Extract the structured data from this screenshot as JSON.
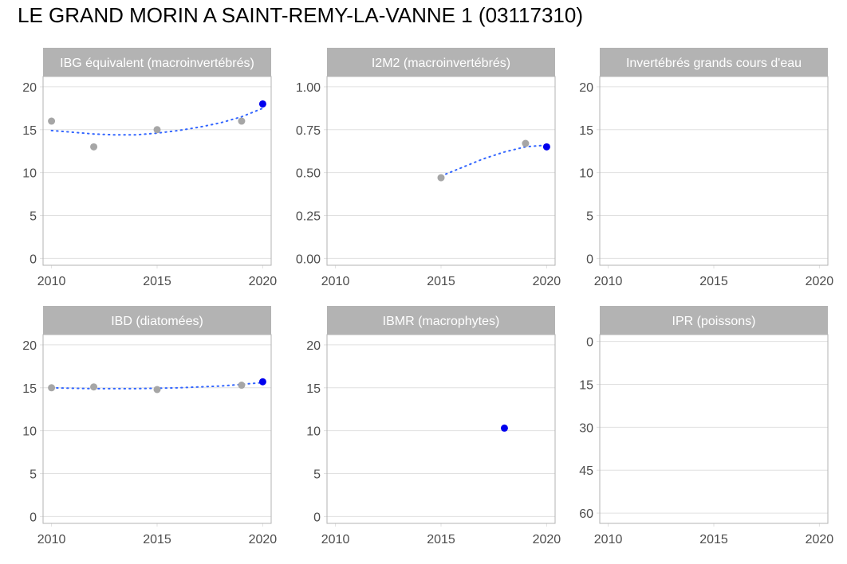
{
  "title": "LE GRAND MORIN A SAINT-REMY-LA-VANNE 1 (03117310)",
  "colors": {
    "strip": "#b3b3b3",
    "grid": "#e0e0e0",
    "border": "#b3b3b3",
    "past_point": "#a6a6a6",
    "latest_point": "#0000ee",
    "trend": "#3366ff",
    "tick_text": "#4d4d4d"
  },
  "chart_data": [
    {
      "type": "scatter",
      "title": "IBG équivalent (macroinvertébrés)",
      "x_ticks": [
        2010,
        2015,
        2020
      ],
      "xlim": [
        2009.6,
        2020.4
      ],
      "y_ticks": [
        0,
        5,
        10,
        15,
        20
      ],
      "y_tick_labels": [
        "0",
        "5",
        "10",
        "15",
        "20"
      ],
      "ylim": [
        -0.8,
        21.2
      ],
      "y_reversed": false,
      "points": [
        {
          "x": 2010,
          "y": 16,
          "latest": false
        },
        {
          "x": 2012,
          "y": 13,
          "latest": false
        },
        {
          "x": 2015,
          "y": 15,
          "latest": false
        },
        {
          "x": 2019,
          "y": 16,
          "latest": false
        },
        {
          "x": 2020,
          "y": 18,
          "latest": true
        }
      ],
      "trend": {
        "x": [
          2010,
          2011,
          2012,
          2013,
          2014,
          2015,
          2016,
          2017,
          2018,
          2019,
          2020
        ],
        "y": [
          14.9,
          14.7,
          14.5,
          14.4,
          14.4,
          14.6,
          14.9,
          15.3,
          15.8,
          16.5,
          17.5
        ]
      }
    },
    {
      "type": "scatter",
      "title": "I2M2 (macroinvertébrés)",
      "x_ticks": [
        2010,
        2015,
        2020
      ],
      "xlim": [
        2009.6,
        2020.4
      ],
      "y_ticks": [
        0,
        0.25,
        0.5,
        0.75,
        1
      ],
      "y_tick_labels": [
        "0.00",
        "0.25",
        "0.50",
        "0.75",
        "1.00"
      ],
      "ylim": [
        -0.04,
        1.06
      ],
      "y_reversed": false,
      "points": [
        {
          "x": 2015,
          "y": 0.47,
          "latest": false
        },
        {
          "x": 2019,
          "y": 0.67,
          "latest": false
        },
        {
          "x": 2020,
          "y": 0.65,
          "latest": true
        }
      ],
      "trend": {
        "x": [
          2015,
          2016,
          2017,
          2018,
          2019,
          2020
        ],
        "y": [
          0.48,
          0.53,
          0.58,
          0.62,
          0.65,
          0.66
        ]
      }
    },
    {
      "type": "scatter",
      "title": "Invertébrés grands cours d'eau",
      "x_ticks": [
        2010,
        2015,
        2020
      ],
      "xlim": [
        2009.6,
        2020.4
      ],
      "y_ticks": [
        0,
        5,
        10,
        15,
        20
      ],
      "y_tick_labels": [
        "0",
        "5",
        "10",
        "15",
        "20"
      ],
      "ylim": [
        -0.8,
        21.2
      ],
      "y_reversed": false,
      "points": [],
      "trend": null
    },
    {
      "type": "scatter",
      "title": "IBD (diatomées)",
      "x_ticks": [
        2010,
        2015,
        2020
      ],
      "xlim": [
        2009.6,
        2020.4
      ],
      "y_ticks": [
        0,
        5,
        10,
        15,
        20
      ],
      "y_tick_labels": [
        "0",
        "5",
        "10",
        "15",
        "20"
      ],
      "ylim": [
        -0.8,
        21.2
      ],
      "y_reversed": false,
      "points": [
        {
          "x": 2010,
          "y": 15.0,
          "latest": false
        },
        {
          "x": 2012,
          "y": 15.1,
          "latest": false
        },
        {
          "x": 2015,
          "y": 14.8,
          "latest": false
        },
        {
          "x": 2019,
          "y": 15.3,
          "latest": false
        },
        {
          "x": 2020,
          "y": 15.7,
          "latest": true
        }
      ],
      "trend": {
        "x": [
          2010,
          2012,
          2014,
          2016,
          2018,
          2019,
          2020
        ],
        "y": [
          15.0,
          14.9,
          14.9,
          15.0,
          15.2,
          15.4,
          15.6
        ]
      }
    },
    {
      "type": "scatter",
      "title": "IBMR (macrophytes)",
      "x_ticks": [
        2010,
        2015,
        2020
      ],
      "xlim": [
        2009.6,
        2020.4
      ],
      "y_ticks": [
        0,
        5,
        10,
        15,
        20
      ],
      "y_tick_labels": [
        "0",
        "5",
        "10",
        "15",
        "20"
      ],
      "ylim": [
        -0.8,
        21.2
      ],
      "y_reversed": false,
      "points": [
        {
          "x": 2018,
          "y": 10.3,
          "latest": true
        }
      ],
      "trend": null
    },
    {
      "type": "scatter",
      "title": "IPR (poissons)",
      "x_ticks": [
        2010,
        2015,
        2020
      ],
      "xlim": [
        2009.6,
        2020.4
      ],
      "y_ticks": [
        0,
        15,
        30,
        45,
        60
      ],
      "y_tick_labels": [
        "0",
        "15",
        "30",
        "45",
        "60"
      ],
      "ylim": [
        -2.4,
        63.6
      ],
      "y_reversed": true,
      "points": [],
      "trend": null
    }
  ]
}
